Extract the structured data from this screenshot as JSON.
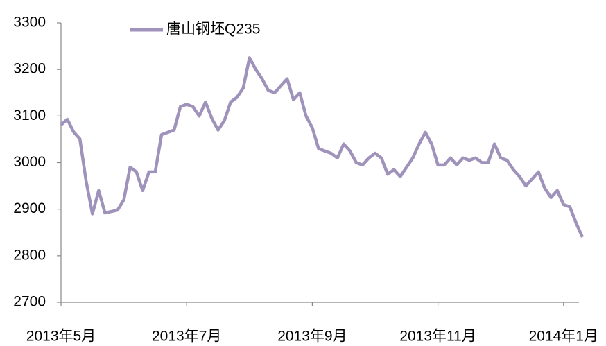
{
  "chart_data": {
    "type": "line",
    "categories": [
      "2013年5月",
      null,
      null,
      null,
      null,
      null,
      null,
      null,
      null,
      null,
      null,
      null,
      null,
      null,
      null,
      null,
      null,
      null,
      null,
      null,
      "2013年7月",
      null,
      null,
      null,
      null,
      null,
      null,
      null,
      null,
      null,
      null,
      null,
      null,
      null,
      null,
      null,
      null,
      null,
      null,
      null,
      "2013年9月",
      null,
      null,
      null,
      null,
      null,
      null,
      null,
      null,
      null,
      null,
      null,
      null,
      null,
      null,
      null,
      null,
      null,
      null,
      null,
      "2013年11月",
      null,
      null,
      null,
      null,
      null,
      null,
      null,
      null,
      null,
      null,
      null,
      null,
      null,
      null,
      null,
      null,
      null,
      null,
      null,
      "2014年1月",
      null,
      null,
      null
    ],
    "series": [
      {
        "name": "唐山钢坯Q235",
        "color": "#a093bb",
        "values": [
          3081,
          3093,
          3066,
          3051,
          2960,
          2890,
          2940,
          2892,
          2895,
          2898,
          2920,
          2990,
          2980,
          2940,
          2980,
          2980,
          3060,
          3065,
          3070,
          3120,
          3125,
          3120,
          3100,
          3130,
          3095,
          3070,
          3090,
          3130,
          3140,
          3160,
          3225,
          3200,
          3180,
          3155,
          3150,
          3165,
          3180,
          3135,
          3150,
          3100,
          3075,
          3030,
          3025,
          3020,
          3010,
          3040,
          3025,
          3000,
          2995,
          3010,
          3020,
          3010,
          2975,
          2985,
          2970,
          2990,
          3010,
          3040,
          3065,
          3040,
          2995,
          2995,
          3010,
          2995,
          3010,
          3005,
          3010,
          3000,
          3000,
          3040,
          3010,
          3005,
          2985,
          2970,
          2950,
          2965,
          2980,
          2945,
          2925,
          2940,
          2910,
          2905,
          2870,
          2840
        ]
      }
    ],
    "ylim": [
      2700,
      3300
    ],
    "yticks": [
      2700,
      2800,
      2900,
      3000,
      3100,
      3200,
      3300
    ],
    "legend": "top-left"
  }
}
